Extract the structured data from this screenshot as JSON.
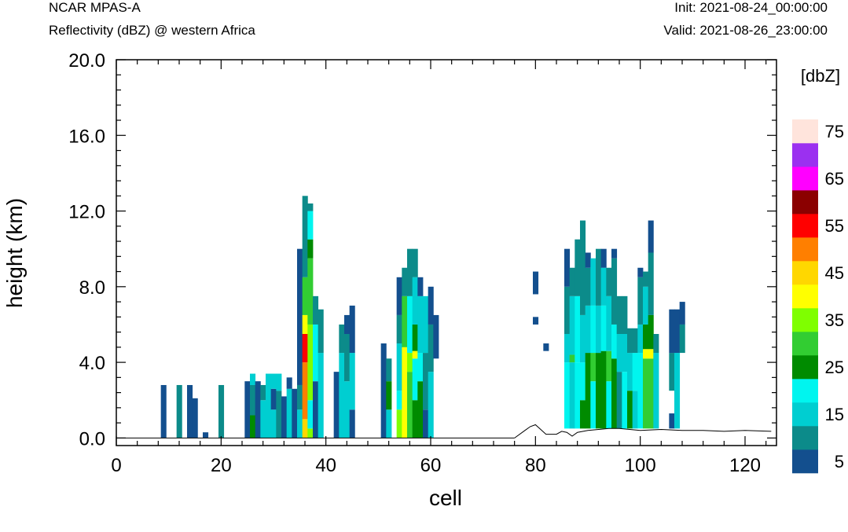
{
  "header": {
    "left_title": "NCAR MPAS-A",
    "left_subtitle": "Reflectivity (dBZ) @ western Africa",
    "right_title": "Init: 2021-08-24_00:00:00",
    "right_subtitle": "Valid: 2021-08-26_23:00:00"
  },
  "chart_data": {
    "type": "heatmap",
    "xlabel": "cell",
    "ylabel": "height (km)",
    "xlim": [
      0,
      126
    ],
    "ylim": [
      -0.4,
      20.0
    ],
    "x_ticks": [
      "0",
      "20",
      "40",
      "60",
      "80",
      "100",
      "120"
    ],
    "y_ticks": [
      "0.0",
      "4.0",
      "8.0",
      "12.0",
      "16.0",
      "20.0"
    ],
    "legend_title": "[dbZ]",
    "legend_labels": [
      "5",
      "15",
      "25",
      "35",
      "45",
      "55",
      "65",
      "75"
    ],
    "color_levels": [
      {
        "min": 5,
        "max": 10,
        "color": "#134f8e"
      },
      {
        "min": 10,
        "max": 15,
        "color": "#0c8b8a"
      },
      {
        "min": 15,
        "max": 20,
        "color": "#00ced1"
      },
      {
        "min": 20,
        "max": 25,
        "color": "#00f5ef"
      },
      {
        "min": 25,
        "max": 30,
        "color": "#008b00"
      },
      {
        "min": 30,
        "max": 35,
        "color": "#32cd32"
      },
      {
        "min": 35,
        "max": 40,
        "color": "#7fff00"
      },
      {
        "min": 40,
        "max": 45,
        "color": "#ffff00"
      },
      {
        "min": 45,
        "max": 50,
        "color": "#ffd700"
      },
      {
        "min": 50,
        "max": 55,
        "color": "#ff7f00"
      },
      {
        "min": 55,
        "max": 60,
        "color": "#ff0000"
      },
      {
        "min": 60,
        "max": 65,
        "color": "#8b0000"
      },
      {
        "min": 65,
        "max": 70,
        "color": "#ff00ff"
      },
      {
        "min": 70,
        "max": 75,
        "color": "#9b30f0"
      },
      {
        "min": 75,
        "max": 80,
        "color": "#ffe4dc"
      }
    ],
    "columns": [
      {
        "cell": 9,
        "segments": [
          [
            0,
            2.8,
            7
          ]
        ]
      },
      {
        "cell": 12,
        "segments": [
          [
            0,
            2.8,
            12
          ]
        ]
      },
      {
        "cell": 14,
        "segments": [
          [
            0,
            2.8,
            8
          ]
        ]
      },
      {
        "cell": 15,
        "segments": [
          [
            0,
            2.1,
            7
          ]
        ]
      },
      {
        "cell": 17,
        "segments": [
          [
            0,
            0.3,
            7
          ]
        ]
      },
      {
        "cell": 20,
        "segments": [
          [
            0,
            2.8,
            12
          ]
        ]
      },
      {
        "cell": 25,
        "segments": [
          [
            0,
            3.0,
            7
          ]
        ]
      },
      {
        "cell": 26,
        "segments": [
          [
            0,
            1.2,
            27
          ],
          [
            1.2,
            2.8,
            12
          ],
          [
            2.8,
            3.4,
            17
          ]
        ]
      },
      {
        "cell": 27,
        "segments": [
          [
            0,
            3.0,
            7
          ]
        ]
      },
      {
        "cell": 28,
        "segments": [
          [
            0,
            2.0,
            17
          ],
          [
            2.0,
            2.8,
            12
          ]
        ]
      },
      {
        "cell": 29,
        "segments": [
          [
            0,
            3.4,
            17
          ]
        ]
      },
      {
        "cell": 30,
        "segments": [
          [
            0,
            1.5,
            17
          ],
          [
            1.5,
            2.6,
            8
          ],
          [
            2.6,
            3.4,
            17
          ]
        ]
      },
      {
        "cell": 31,
        "segments": [
          [
            0,
            2.5,
            12
          ],
          [
            2.5,
            3.4,
            17
          ]
        ]
      },
      {
        "cell": 32,
        "segments": [
          [
            0,
            2.2,
            7
          ]
        ]
      },
      {
        "cell": 33,
        "segments": [
          [
            0,
            2.6,
            17
          ],
          [
            2.6,
            3.2,
            7
          ]
        ]
      },
      {
        "cell": 34,
        "segments": [
          [
            0,
            2.6,
            7
          ]
        ]
      },
      {
        "cell": 35,
        "segments": [
          [
            0,
            1.5,
            17
          ],
          [
            1.5,
            2.8,
            12
          ],
          [
            2.8,
            10.0,
            7
          ]
        ]
      },
      {
        "cell": 36,
        "segments": [
          [
            0,
            1.0,
            48
          ],
          [
            1.0,
            4.0,
            52
          ],
          [
            4.0,
            5.5,
            57
          ],
          [
            5.5,
            6.5,
            40
          ],
          [
            6.5,
            8.5,
            33
          ],
          [
            8.5,
            12.8,
            12
          ]
        ]
      },
      {
        "cell": 37,
        "segments": [
          [
            0,
            0.5,
            37
          ],
          [
            0.5,
            2.0,
            22
          ],
          [
            2.0,
            6.0,
            37
          ],
          [
            6.0,
            9.5,
            32
          ],
          [
            9.5,
            10.5,
            27
          ],
          [
            10.5,
            12.0,
            22
          ],
          [
            12.0,
            12.4,
            12
          ]
        ]
      },
      {
        "cell": 38,
        "segments": [
          [
            0,
            3.0,
            7
          ],
          [
            3.0,
            6.0,
            22
          ],
          [
            6.0,
            7.5,
            12
          ]
        ]
      },
      {
        "cell": 39,
        "segments": [
          [
            0,
            4.5,
            17
          ],
          [
            4.5,
            6.8,
            12
          ]
        ]
      },
      {
        "cell": 42,
        "segments": [
          [
            0,
            3.5,
            7
          ]
        ]
      },
      {
        "cell": 43,
        "segments": [
          [
            0,
            4.5,
            17
          ],
          [
            4.5,
            6.0,
            12
          ]
        ]
      },
      {
        "cell": 44,
        "segments": [
          [
            0,
            3.0,
            17
          ],
          [
            3.0,
            5.5,
            12
          ],
          [
            5.5,
            6.5,
            7
          ]
        ]
      },
      {
        "cell": 45,
        "segments": [
          [
            0,
            1.5,
            7
          ],
          [
            1.5,
            4.5,
            17
          ],
          [
            4.5,
            7.0,
            7
          ]
        ]
      },
      {
        "cell": 51,
        "segments": [
          [
            0,
            5.0,
            7
          ]
        ]
      },
      {
        "cell": 52,
        "segments": [
          [
            0,
            1.5,
            17
          ],
          [
            1.5,
            3.0,
            27
          ],
          [
            3.0,
            4.2,
            12
          ]
        ]
      },
      {
        "cell": 54,
        "segments": [
          [
            0,
            1.5,
            37
          ],
          [
            1.5,
            2.5,
            22
          ],
          [
            2.5,
            5.0,
            17
          ],
          [
            5.0,
            6.5,
            12
          ],
          [
            6.5,
            8.5,
            7
          ]
        ]
      },
      {
        "cell": 55,
        "segments": [
          [
            0,
            4.8,
            42
          ],
          [
            4.8,
            7.5,
            32
          ],
          [
            7.5,
            9.0,
            12
          ]
        ]
      },
      {
        "cell": 56,
        "segments": [
          [
            0,
            3.5,
            32
          ],
          [
            3.5,
            4.5,
            37
          ],
          [
            4.5,
            7.5,
            22
          ],
          [
            7.5,
            10.0,
            12
          ]
        ]
      },
      {
        "cell": 57,
        "segments": [
          [
            0,
            2.0,
            27
          ],
          [
            2.0,
            4.2,
            22
          ],
          [
            4.2,
            4.6,
            42
          ],
          [
            4.6,
            6.0,
            27
          ],
          [
            6.0,
            8.5,
            17
          ],
          [
            8.5,
            10.0,
            12
          ]
        ]
      },
      {
        "cell": 58,
        "segments": [
          [
            0,
            3.0,
            27
          ],
          [
            3.0,
            4.5,
            22
          ],
          [
            4.5,
            7.5,
            17
          ],
          [
            7.5,
            8.5,
            7
          ]
        ]
      },
      {
        "cell": 59,
        "segments": [
          [
            0,
            1.5,
            7
          ],
          [
            1.5,
            4.5,
            12
          ],
          [
            4.5,
            7.5,
            17
          ]
        ]
      },
      {
        "cell": 60,
        "segments": [
          [
            0,
            3.5,
            17
          ],
          [
            3.5,
            6.0,
            12
          ],
          [
            6.0,
            8.0,
            7
          ]
        ]
      },
      {
        "cell": 61,
        "segments": [
          [
            4.2,
            6.5,
            7
          ]
        ]
      },
      {
        "cell": 80,
        "segments": [
          [
            7.6,
            8.8,
            7
          ],
          [
            6.0,
            6.4,
            7
          ]
        ]
      },
      {
        "cell": 82,
        "segments": [
          [
            4.6,
            5.0,
            7
          ]
        ]
      },
      {
        "cell": 86,
        "segments": [
          [
            0.5,
            4.0,
            22
          ],
          [
            4.0,
            5.5,
            17
          ],
          [
            5.5,
            8.0,
            12
          ],
          [
            8.0,
            10.0,
            7
          ]
        ]
      },
      {
        "cell": 87,
        "segments": [
          [
            0.5,
            4.0,
            17
          ],
          [
            4.0,
            4.4,
            32
          ],
          [
            4.4,
            7.5,
            17
          ],
          [
            7.5,
            9.0,
            12
          ]
        ]
      },
      {
        "cell": 88,
        "segments": [
          [
            0.5,
            4.0,
            22
          ],
          [
            4.0,
            7.5,
            22
          ],
          [
            7.5,
            10.5,
            12
          ]
        ]
      },
      {
        "cell": 89,
        "segments": [
          [
            0.5,
            2.0,
            27
          ],
          [
            2.0,
            4.0,
            22
          ],
          [
            4.0,
            6.5,
            17
          ],
          [
            6.5,
            11.5,
            12
          ]
        ]
      },
      {
        "cell": 90,
        "segments": [
          [
            0.5,
            4.5,
            27
          ],
          [
            4.5,
            7.0,
            17
          ],
          [
            7.0,
            9.0,
            12
          ],
          [
            9.0,
            9.8,
            7
          ]
        ]
      },
      {
        "cell": 91,
        "segments": [
          [
            0.5,
            3.0,
            22
          ],
          [
            3.0,
            4.5,
            32
          ],
          [
            4.5,
            7.0,
            22
          ],
          [
            7.0,
            9.5,
            17
          ]
        ]
      },
      {
        "cell": 92,
        "segments": [
          [
            0.5,
            4.5,
            27
          ],
          [
            4.5,
            7.0,
            17
          ],
          [
            7.0,
            10.0,
            12
          ]
        ]
      },
      {
        "cell": 93,
        "segments": [
          [
            0.5,
            4.6,
            27
          ],
          [
            4.6,
            7.0,
            22
          ],
          [
            7.0,
            9.0,
            17
          ],
          [
            9.0,
            10.0,
            7
          ]
        ]
      },
      {
        "cell": 94,
        "segments": [
          [
            0.5,
            3.0,
            22
          ],
          [
            3.0,
            4.6,
            32
          ],
          [
            4.6,
            7.5,
            17
          ],
          [
            7.5,
            9.0,
            12
          ]
        ]
      },
      {
        "cell": 95,
        "segments": [
          [
            0.5,
            4.2,
            27
          ],
          [
            4.2,
            6.0,
            22
          ],
          [
            6.0,
            9.5,
            12
          ],
          [
            9.5,
            10.0,
            7
          ]
        ]
      },
      {
        "cell": 96,
        "segments": [
          [
            0.5,
            3.5,
            12
          ],
          [
            3.5,
            5.5,
            17
          ],
          [
            5.5,
            7.5,
            12
          ]
        ]
      },
      {
        "cell": 97,
        "segments": [
          [
            0.5,
            3.5,
            22
          ],
          [
            3.5,
            5.5,
            17
          ],
          [
            5.5,
            7.5,
            12
          ]
        ]
      },
      {
        "cell": 98,
        "segments": [
          [
            0.5,
            2.5,
            27
          ],
          [
            2.5,
            4.5,
            17
          ],
          [
            4.5,
            5.8,
            12
          ]
        ]
      },
      {
        "cell": 99,
        "segments": [
          [
            0.5,
            2.5,
            17
          ],
          [
            2.5,
            4.5,
            22
          ],
          [
            4.5,
            5.8,
            12
          ]
        ]
      },
      {
        "cell": 100,
        "segments": [
          [
            0.5,
            4.5,
            22
          ],
          [
            4.5,
            6.0,
            17
          ],
          [
            6.0,
            8.5,
            12
          ],
          [
            8.5,
            9.0,
            7
          ]
        ]
      },
      {
        "cell": 101,
        "segments": [
          [
            0.5,
            4.2,
            32
          ],
          [
            4.2,
            4.7,
            42
          ],
          [
            4.7,
            6.0,
            27
          ],
          [
            6.0,
            8.0,
            17
          ],
          [
            8.0,
            8.8,
            12
          ]
        ]
      },
      {
        "cell": 102,
        "segments": [
          [
            0.5,
            4.2,
            32
          ],
          [
            4.2,
            4.7,
            42
          ],
          [
            4.7,
            6.5,
            27
          ],
          [
            6.5,
            9.8,
            12
          ],
          [
            9.8,
            11.5,
            7
          ]
        ]
      },
      {
        "cell": 103,
        "segments": [
          [
            0.5,
            4.5,
            17
          ],
          [
            4.5,
            5.5,
            12
          ]
        ]
      },
      {
        "cell": 106,
        "segments": [
          [
            0.5,
            1.3,
            7
          ],
          [
            2.5,
            4.5,
            12
          ],
          [
            4.5,
            6.8,
            7
          ]
        ]
      },
      {
        "cell": 107,
        "segments": [
          [
            0.5,
            4.5,
            17
          ],
          [
            4.5,
            6.8,
            7
          ]
        ]
      },
      {
        "cell": 108,
        "segments": [
          [
            4.5,
            6.0,
            12
          ],
          [
            6.0,
            7.2,
            7
          ]
        ]
      }
    ],
    "terrain": [
      [
        76,
        0.0
      ],
      [
        78,
        0.4
      ],
      [
        79,
        0.6
      ],
      [
        80,
        0.7
      ],
      [
        81,
        0.45
      ],
      [
        82,
        0.2
      ],
      [
        84,
        0.2
      ],
      [
        85,
        0.35
      ],
      [
        86,
        0.3
      ],
      [
        87,
        0.1
      ],
      [
        88,
        0.3
      ],
      [
        90,
        0.4
      ],
      [
        94,
        0.5
      ],
      [
        96,
        0.5
      ],
      [
        98,
        0.45
      ],
      [
        100,
        0.4
      ],
      [
        104,
        0.45
      ],
      [
        108,
        0.4
      ],
      [
        112,
        0.4
      ],
      [
        116,
        0.35
      ],
      [
        120,
        0.4
      ],
      [
        125,
        0.35
      ]
    ]
  }
}
